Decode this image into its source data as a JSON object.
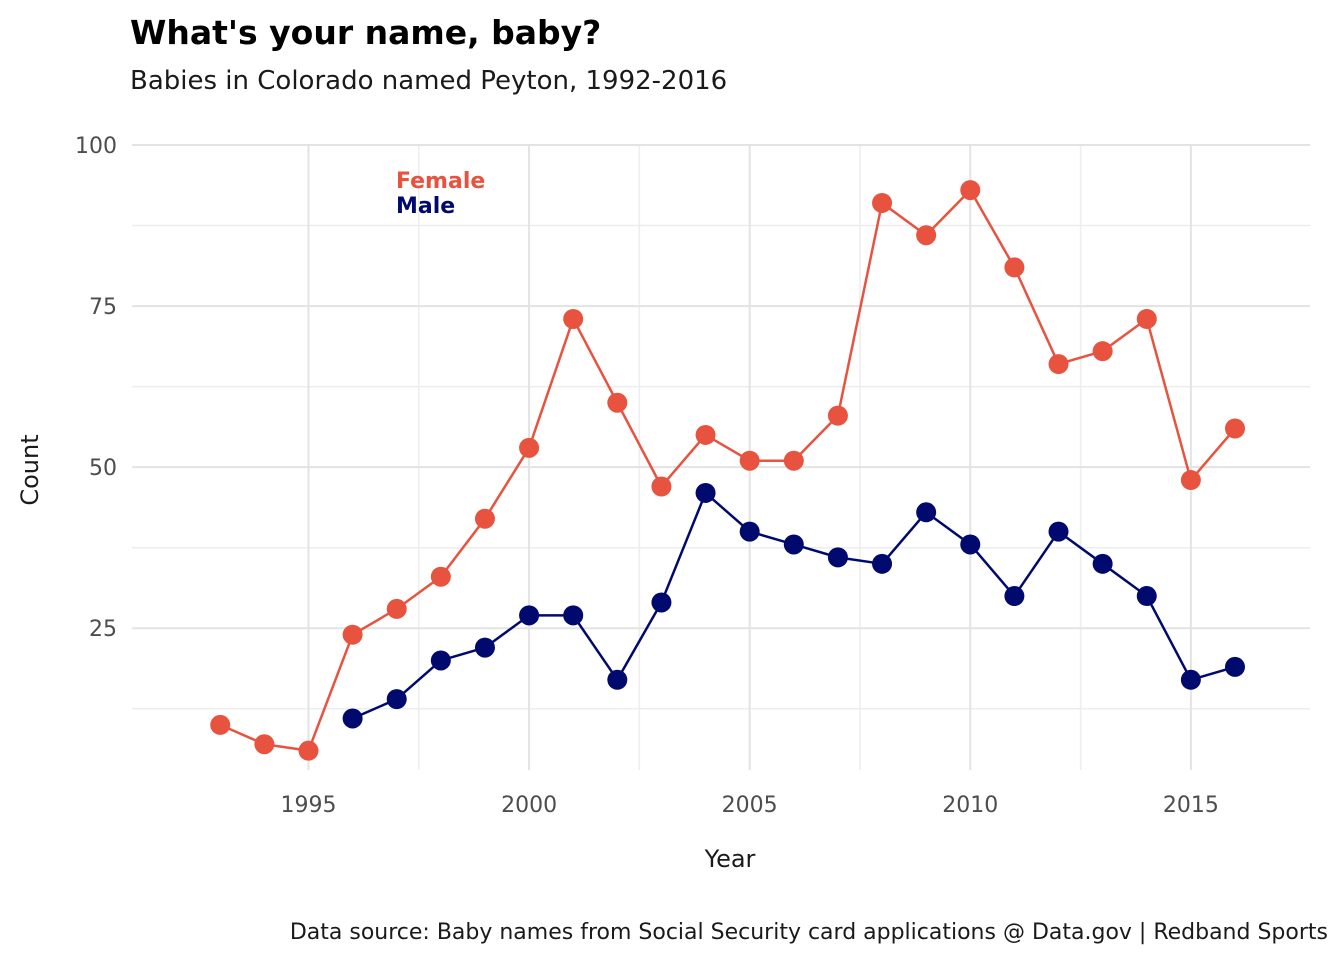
{
  "chart_data": {
    "type": "line",
    "title": "What's your name, baby?",
    "subtitle": "Babies in Colorado named Peyton, 1992-2016",
    "xlabel": "Year",
    "ylabel": "Count",
    "caption": "Data source: Baby names from Social Security card applications @ Data.gov  |  Redband Sports",
    "xlim": [
      1991,
      2017.7
    ],
    "ylim": [
      3,
      100
    ],
    "x_ticks": [
      1995,
      2000,
      2005,
      2010,
      2015
    ],
    "x_minor_ticks": [
      1997.5,
      2002.5,
      2007.5,
      2012.5
    ],
    "y_ticks": [
      25,
      50,
      75,
      100
    ],
    "y_minor_ticks": [
      12.5,
      37.5,
      62.5,
      87.5
    ],
    "grid": true,
    "legend_position": "top-left",
    "series": [
      {
        "name": "Female",
        "color": "#e8533f",
        "x": [
          1993,
          1994,
          1995,
          1996,
          1997,
          1998,
          1999,
          2000,
          2001,
          2002,
          2003,
          2004,
          2005,
          2006,
          2007,
          2008,
          2009,
          2010,
          2011,
          2012,
          2013,
          2014,
          2015,
          2016
        ],
        "y": [
          10,
          7,
          6,
          24,
          28,
          33,
          42,
          53,
          73,
          60,
          47,
          55,
          51,
          51,
          58,
          91,
          86,
          93,
          81,
          66,
          68,
          73,
          48,
          56
        ]
      },
      {
        "name": "Male",
        "color": "#000a6e",
        "x": [
          1996,
          1997,
          1998,
          1999,
          2000,
          2001,
          2002,
          2003,
          2004,
          2005,
          2006,
          2007,
          2008,
          2009,
          2010,
          2011,
          2012,
          2013,
          2014,
          2015,
          2016
        ],
        "y": [
          11,
          14,
          20,
          22,
          27,
          27,
          17,
          29,
          46,
          40,
          38,
          36,
          35,
          43,
          38,
          30,
          40,
          35,
          30,
          17,
          19
        ]
      }
    ]
  }
}
